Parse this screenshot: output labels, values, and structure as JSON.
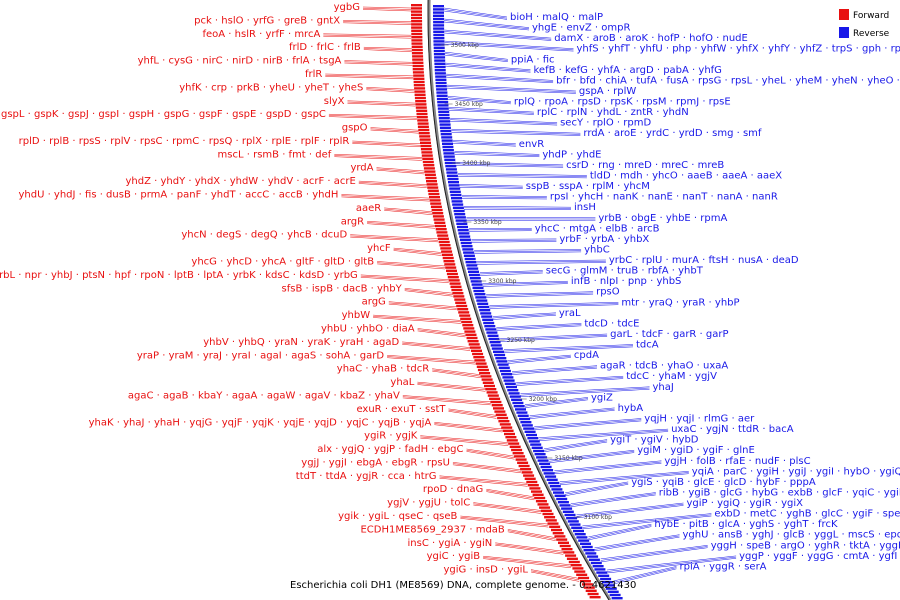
{
  "caption": "Escherichia coli DH1 (ME8569) DNA, complete genome. - 0..4621430",
  "legend": {
    "forward": {
      "label": "Forward",
      "color": "#e81010"
    },
    "reverse": {
      "label": "Reverse",
      "color": "#1818e8"
    }
  },
  "ticks": [
    "3500 kbp",
    "3450 kbp",
    "3400 kbp",
    "3350 kbp",
    "3300 kbp",
    "3250 kbp",
    "3200 kbp",
    "3150 kbp",
    "3100 kbp"
  ],
  "forward_rows": [
    "ygbG",
    "pck · hslO · yrfG · greB · gntX",
    "feoA · hslR · yrfF · mrcA",
    "frlD · frlC · frlB",
    "yhfL · cysG · nirC · nirD · nirB · frlA · tsgA",
    "frlR",
    "yhfK · crp · prkB · yheU · yheT · yheS",
    "slyX",
    "gspM · gspL · gspK · gspJ · gspI · gspH · gspG · gspF · gspE · gspD · gspC",
    "gspO",
    "rplD · rplB · rpsS · rplV · rpsC · rpmC · rpsQ · rplX · rplE · rplF · rplR",
    "mscL · rsmB · fmt · def",
    "yrdA",
    "yhdZ · yhdY · yhdX · yhdW · yhdV · acrF · acrE",
    "yhdU · yhdJ · fis · dusB · prmA · panF · yhdT · accC · accB · yhdH",
    "aaeR",
    "argR",
    "yhcN · degS · degQ · yhcB · dcuD",
    "yhcF",
    "yhcG · yhcD · yhcA · gltF · gltD · gltB",
    "yrbL · npr · yhbJ · ptsN · hpf · rpoN · lptB · lptA · yrbK · kdsC · kdsD · yrbG",
    "sfsB · ispB · dacB · yhbY",
    "argG",
    "yhbW",
    "yhbU · yhbO · diaA",
    "yhbV · yhbQ · yraN · yraK · yraH · agaD",
    "yraP · yraM · yraJ · yraI · agaI · agaS · sohA · garD",
    "yhaC · yhaB · tdcR",
    "yhaL",
    "agaC · agaB · kbaY · agaA · agaW · agaV · kbaZ · yhaV",
    "exuR · exuT · sstT",
    "yhaK · yhaJ · yhaH · yqjG · yqjF · yqjK · yqjE · yqjD · yqjC · yqjB · yqjA",
    "ygiR · ygjK",
    "alx · ygjQ · ygjP · fadH · ebgC",
    "ygjJ · ygjI · ebgA · ebgR · rpsU",
    "ttdT · ttdA · ygjR · cca · htrG",
    "rpoD · dnaG",
    "ygjV · ygjU · tolC",
    "ygik · ygiL · qseC · qseB",
    "ECDH1ME8569_2937 · mdaB",
    "insC · ygiA · ygiN",
    "ygiC · ygiB",
    "ygiG · insD · ygiL"
  ],
  "reverse_rows": [
    "bioH · malQ · malP",
    "yhgE · envZ · ompR",
    "damX · aroB · aroK · hofP · hofO · nudE",
    "yhfS · yhfT · yhfU · php · yhfW · yhfX · yhfY · yhfZ · trpS · gph · rpe · dam · hofQ · hofN · yrfD",
    "ppiA · fic",
    "kefB · kefG · yhfA · argD · pabA · yhfG",
    "bfr · bfd · chiA · tufA · fusA · rpsG · rpsL · yheL · yheM · yheN · yheO · fkpA · slyD · yheV · kefG",
    "gspA · rplW",
    "rplQ · rpoA · rpsD · rpsK · rpsM · rpmJ · rpsE",
    "rplC · rplN · yhdL · zntR · yhdN",
    "secY · rplO · rpmD",
    "rrdA · aroE · yrdC · yrdD · smg · smf",
    "envR",
    "yhdP · yhdE",
    "csrD · rng · mreD · mreC · mreB",
    "tldD · mdh · yhcO · aaeB · aaeA · aaeX",
    "sspB · sspA · rplM · yhcM",
    "rpsI · yhcH · nanK · nanE · nanT · nanA · nanR",
    "insH",
    "yrbB · obgE · yhbE · rpmA",
    "yhcC · mtgA · elbB · arcB",
    "yrbF · yrbA · yhbX",
    "yhbC",
    "yrbC · rplU · murA · ftsH · nusA · deaD",
    "secG · glmM · truB · rbfA · yhbT",
    "infB · nlpI · pnp · yhbS",
    "rpsO",
    "mtr · yraQ · yraR · yhbP",
    "yraL",
    "tdcD · tdcE",
    "garL · tdcF · garR · garP",
    "tdcA",
    "cpdA",
    "agaR · tdcB · yhaO · uxaA",
    "tdcC · yhaM · ygjV",
    "yhaJ",
    "ygiZ",
    "hybA",
    "yqjH · yqjI · rlmG · aer",
    "uxaC · ygjN · ttdR · bacA",
    "ygiT · ygiV · hybD",
    "ygiM · ygiD · ygiF · glnE",
    "ygjH · folB · rfaE · nudF · plsC",
    "yqiA · parC · ygiH · ygiJ · ygiI · hybO · ygiQ",
    "ygiS · yqiB · glcE · glcD · hybF · pppA",
    "ribB · ygiB · glcG · hybG · exbB · glcF · yqiC · ygiE",
    "ygiP · ygiQ · ygiR · ygiX",
    "exbD · metC · yghB · glcC · ygiF · speC",
    "hybE · pitB · glcA · yghS · yghT · frcK",
    "yghU · ansB · yghJ · glcB · yggL · mscS · epd · pgk",
    "yggH · speB · argO · yghR · tktA · yggE",
    "yggP · yggF · yggG · cmtA · ygfI · fbaA · ygfE",
    "rpiA · yggR · serA"
  ]
}
